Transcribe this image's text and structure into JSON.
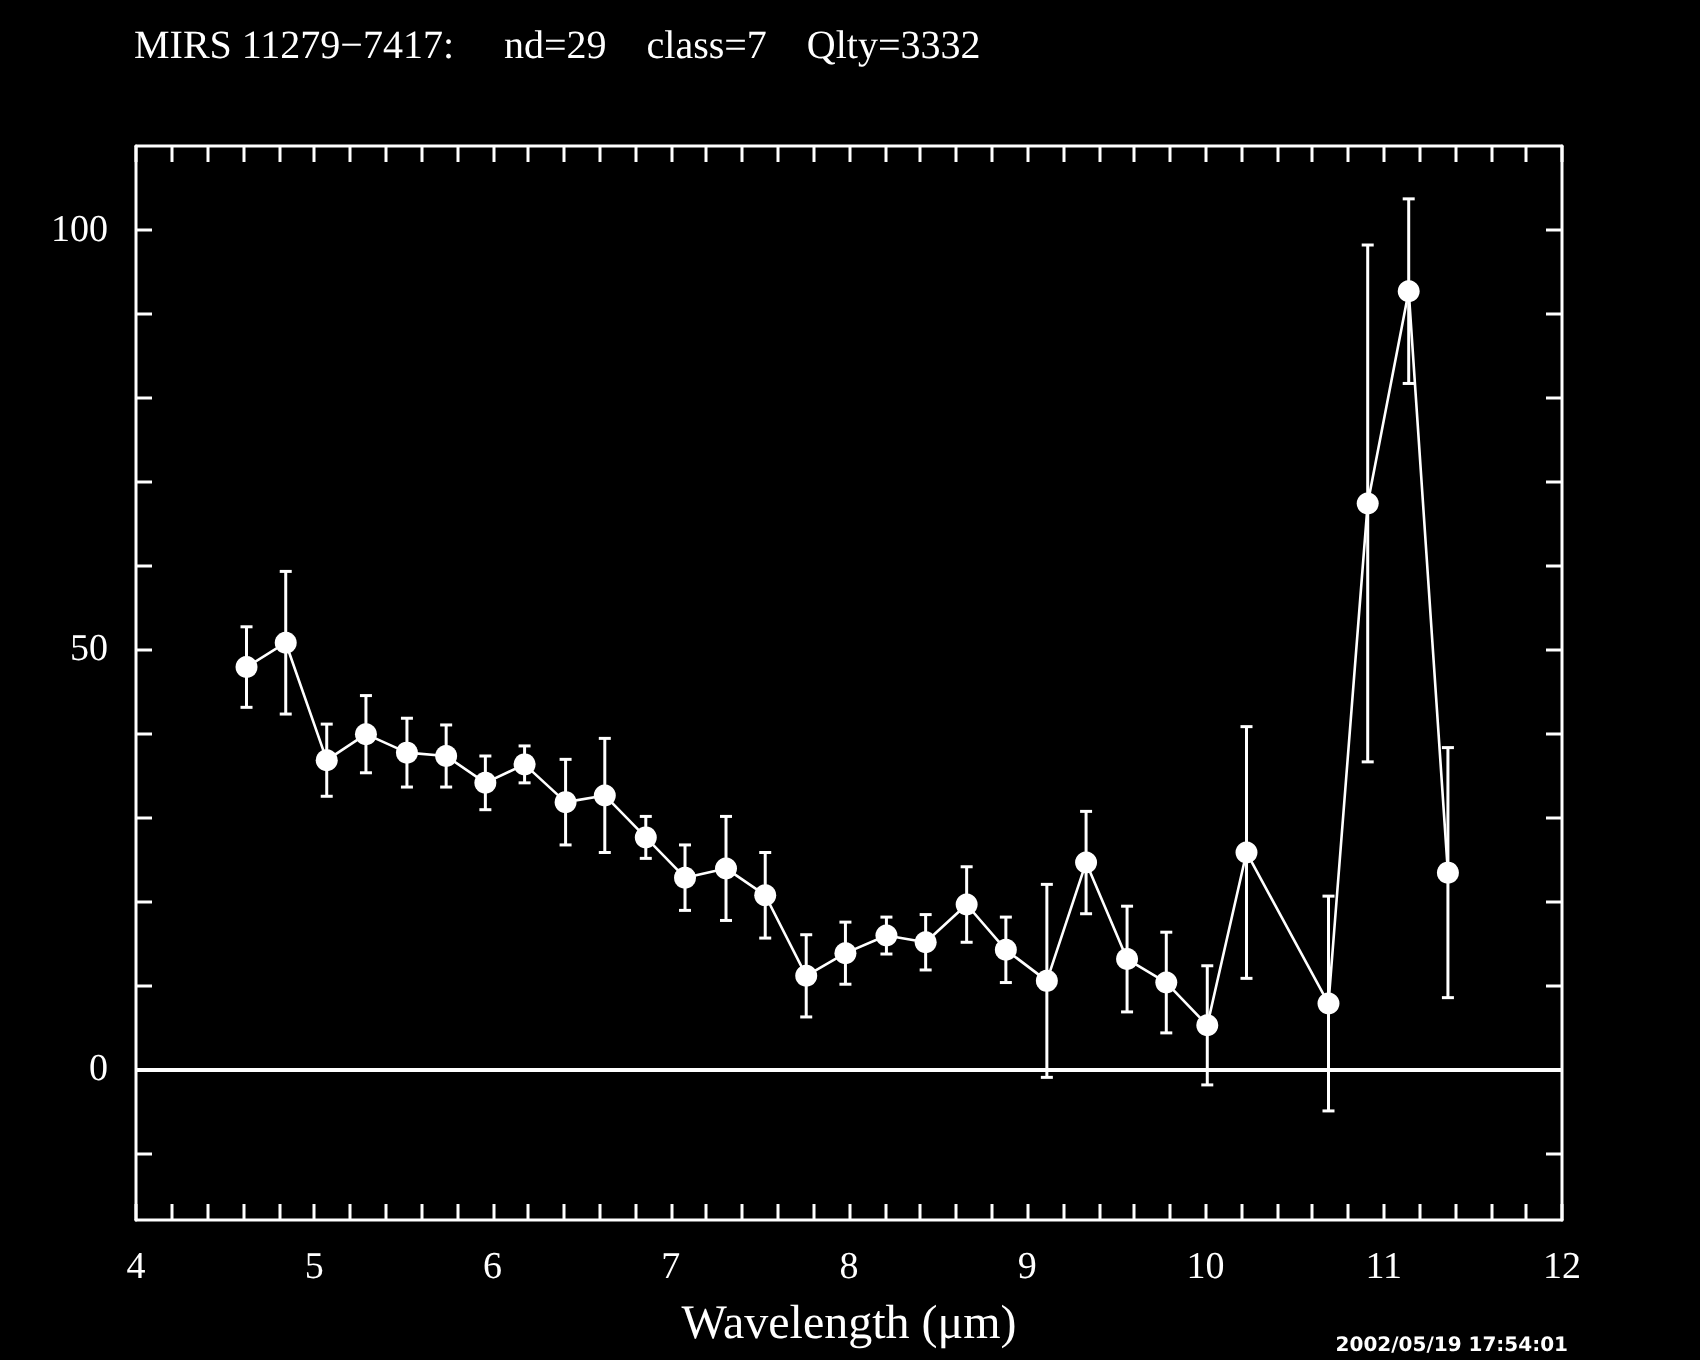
{
  "chart_data": {
    "type": "line",
    "title": "MIRS 11279−7417:     nd=29    class=7    Qlty=3332",
    "xlabel": "Wavelength (μm)",
    "annotations": [
      "2002/05/19 17:54:01"
    ],
    "x": [
      4.62,
      4.84,
      5.07,
      5.29,
      5.52,
      5.74,
      5.96,
      6.18,
      6.41,
      6.63,
      6.86,
      7.08,
      7.31,
      7.53,
      7.76,
      7.98,
      8.21,
      8.43,
      8.66,
      8.88,
      9.11,
      9.33,
      9.56,
      9.78,
      10.01,
      10.23,
      10.69,
      10.91,
      11.14,
      11.36
    ],
    "series": [
      {
        "color": "#ffffff",
        "values": [
          47.9,
          50.8,
          36.8,
          39.9,
          37.7,
          37.3,
          34.1,
          36.3,
          31.8,
          32.6,
          27.6,
          22.8,
          23.9,
          20.7,
          11.1,
          13.8,
          15.9,
          15.1,
          19.6,
          14.2,
          10.5,
          24.6,
          13.1,
          10.3,
          5.2,
          25.8,
          7.8,
          67.4,
          92.7,
          23.4
        ],
        "errors": [
          4.8,
          8.5,
          4.3,
          4.6,
          4.1,
          3.7,
          3.2,
          2.2,
          5.1,
          6.8,
          2.5,
          3.9,
          6.2,
          5.1,
          4.9,
          3.7,
          2.2,
          3.3,
          4.5,
          3.9,
          11.5,
          6.1,
          6.3,
          6.0,
          7.1,
          15.0,
          12.8,
          30.8,
          11.0,
          14.9
        ]
      }
    ],
    "marker": "circle",
    "line_style": "solid",
    "xlim": [
      4,
      12
    ],
    "xticks": [
      4,
      {
        "value": 4.2,
        "label": null
      },
      {
        "value": 4.4,
        "label": null
      },
      {
        "value": 4.6,
        "label": null
      },
      {
        "value": 4.8,
        "label": null
      },
      5,
      {
        "value": 5.2,
        "label": null
      },
      {
        "value": 5.4,
        "label": null
      },
      {
        "value": 5.6,
        "label": null
      },
      {
        "value": 5.8,
        "label": null
      },
      6,
      {
        "value": 6.2,
        "label": null
      },
      {
        "value": 6.4,
        "label": null
      },
      {
        "value": 6.6,
        "label": null
      },
      {
        "value": 6.8,
        "label": null
      },
      7,
      {
        "value": 7.2,
        "label": null
      },
      {
        "value": 7.4,
        "label": null
      },
      {
        "value": 7.6,
        "label": null
      },
      {
        "value": 7.8,
        "label": null
      },
      8,
      {
        "value": 8.2,
        "label": null
      },
      {
        "value": 8.4,
        "label": null
      },
      {
        "value": 8.6,
        "label": null
      },
      {
        "value": 8.8,
        "label": null
      },
      9,
      {
        "value": 9.2,
        "label": null
      },
      {
        "value": 9.4,
        "label": null
      },
      {
        "value": 9.6,
        "label": null
      },
      {
        "value": 9.8,
        "label": null
      },
      10,
      {
        "value": 10.2,
        "label": null
      },
      {
        "value": 10.4,
        "label": null
      },
      {
        "value": 10.6,
        "label": null
      },
      {
        "value": 10.8,
        "label": null
      },
      11,
      {
        "value": 11.2,
        "label": null
      },
      {
        "value": 11.4,
        "label": null
      },
      {
        "value": 11.6,
        "label": null
      },
      {
        "value": 11.8,
        "label": null
      },
      12
    ],
    "ylim": [
      -18,
      110
    ],
    "yticks": [
      {
        "value": -10,
        "label": null
      },
      0,
      {
        "value": 10,
        "label": null
      },
      {
        "value": 20,
        "label": null
      },
      {
        "value": 30,
        "label": null
      },
      {
        "value": 40,
        "label": null
      },
      50,
      {
        "value": 60,
        "label": null
      },
      {
        "value": 70,
        "label": null
      },
      {
        "value": 80,
        "label": null
      },
      {
        "value": 90,
        "label": null
      },
      100
    ],
    "ref_lines": [
      {
        "axis": "y",
        "value": 0,
        "label": null,
        "color": "#ffffff",
        "line_style": "solid"
      }
    ]
  }
}
